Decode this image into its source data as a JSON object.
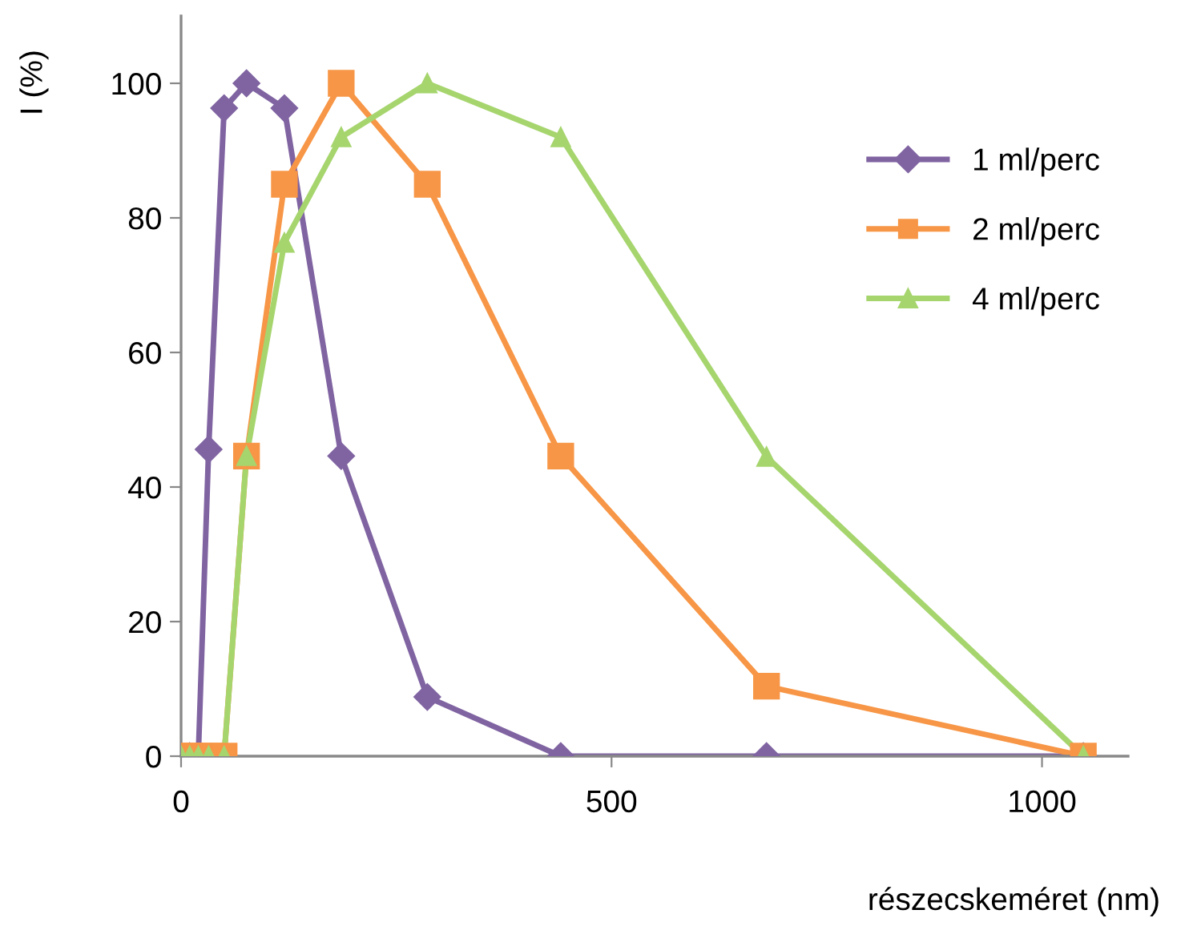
{
  "chart_data": {
    "type": "line",
    "xlabel": "részecskeméret (nm)",
    "ylabel": "I (%)",
    "x": [
      0,
      10,
      20,
      32,
      50,
      76,
      120,
      186,
      286,
      441,
      680,
      1048
    ],
    "xlim": [
      0,
      1100
    ],
    "xticks": [
      0,
      500,
      1000
    ],
    "ylim": [
      0,
      110
    ],
    "yticks": [
      0,
      20,
      40,
      60,
      80,
      100
    ],
    "grid": false,
    "legend": "right",
    "line_style": "solid",
    "series": [
      {
        "name": "1 ml/perc",
        "color": "#8064a2",
        "marker": "diamond",
        "values": [
          0,
          0,
          0,
          45.6,
          96.3,
          100,
          96.3,
          44.6,
          8.8,
          0,
          0,
          0
        ]
      },
      {
        "name": "2 ml/perc",
        "color": "#f79646",
        "marker": "square",
        "values": [
          0,
          0,
          0,
          0,
          0,
          44.6,
          85,
          100,
          85,
          44.6,
          10.4,
          0
        ]
      },
      {
        "name": "4 ml/perc",
        "color": "#a6d56e",
        "marker": "triangle",
        "values": [
          0,
          0,
          0,
          0,
          0,
          44.6,
          76.3,
          92,
          100,
          92,
          44.5,
          0
        ]
      }
    ]
  }
}
